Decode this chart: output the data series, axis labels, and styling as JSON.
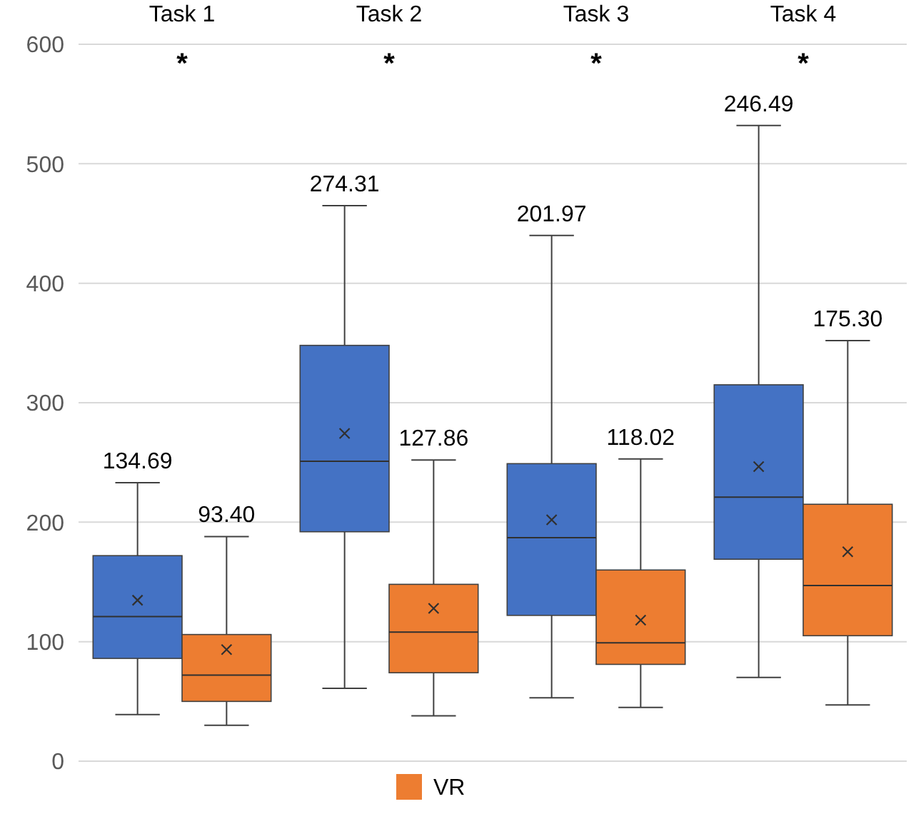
{
  "chart_data": {
    "type": "box",
    "categories": [
      "Task 1",
      "Task 2",
      "Task 3",
      "Task 4"
    ],
    "ylim": [
      0,
      600
    ],
    "yticks": [
      0,
      100,
      200,
      300,
      400,
      500,
      600
    ],
    "grid": "y",
    "legend": "bottom",
    "marker": "cross",
    "series": [
      {
        "color": "#4472c4",
        "boxes": [
          {
            "low": 39,
            "q1": 86,
            "median": 121,
            "q3": 172,
            "high": 233,
            "mean": 134.69
          },
          {
            "low": 61,
            "q1": 192,
            "median": 251,
            "q3": 348,
            "high": 465,
            "mean": 274.31
          },
          {
            "low": 53,
            "q1": 122,
            "median": 187,
            "q3": 249,
            "high": 440,
            "mean": 201.97
          },
          {
            "low": 70,
            "q1": 169,
            "median": 221,
            "q3": 315,
            "high": 532,
            "mean": 246.49
          }
        ],
        "value_labels": [
          "134.69",
          "274.31",
          "201.97",
          "246.49"
        ]
      },
      {
        "name": "VR",
        "color": "#ed7d31",
        "boxes": [
          {
            "low": 30,
            "q1": 50,
            "median": 72,
            "q3": 106,
            "high": 188,
            "mean": 93.4
          },
          {
            "low": 38,
            "q1": 74,
            "median": 108,
            "q3": 148,
            "high": 252,
            "mean": 127.86
          },
          {
            "low": 45,
            "q1": 81,
            "median": 99,
            "q3": 160,
            "high": 253,
            "mean": 118.02
          },
          {
            "low": 47,
            "q1": 105,
            "median": 147,
            "q3": 215,
            "high": 352,
            "mean": 175.3
          }
        ],
        "value_labels": [
          "93.40",
          "127.86",
          "118.02",
          "175.30"
        ]
      }
    ],
    "annotations": [
      "*",
      "*",
      "*",
      "*"
    ]
  }
}
